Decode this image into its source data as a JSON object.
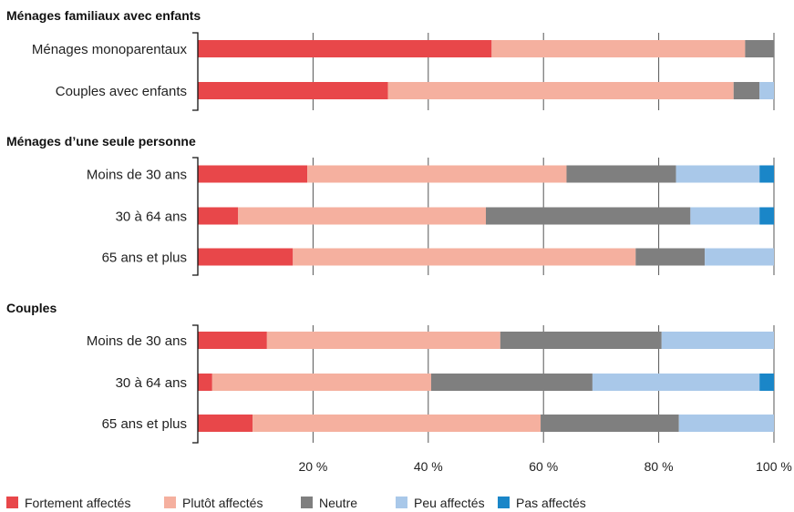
{
  "chart_data": {
    "type": "bar",
    "stacked": true,
    "orientation": "horizontal",
    "xlim": [
      0,
      100
    ],
    "xticks": [
      20,
      40,
      60,
      80,
      100
    ],
    "xtick_labels": [
      "20 %",
      "40 %",
      "60 %",
      "80 %",
      "100 %"
    ],
    "grid": "vertical",
    "legend_position": "bottom",
    "series": [
      {
        "name": "Fortement affectés",
        "color": "#e8474a"
      },
      {
        "name": "Plutôt affectés",
        "color": "#f5b09f"
      },
      {
        "name": "Neutre",
        "color": "#7f7f7f"
      },
      {
        "name": "Peu affectés",
        "color": "#a9c8e9"
      },
      {
        "name": "Pas affectés",
        "color": "#1a86c8"
      }
    ],
    "groups": [
      {
        "title": "Ménages familiaux avec enfants",
        "categories": [
          {
            "label": "Ménages monoparentaux",
            "values": [
              51,
              44,
              5,
              0,
              0
            ]
          },
          {
            "label": "Couples avec enfants",
            "values": [
              33,
              60,
              4.5,
              2.5,
              0
            ]
          }
        ]
      },
      {
        "title": "Ménages d’une seule personne",
        "categories": [
          {
            "label": "Moins de 30 ans",
            "values": [
              19,
              45,
              19,
              14.5,
              2.5
            ]
          },
          {
            "label": "30 à 64 ans",
            "values": [
              7,
              43,
              35.5,
              12,
              2.5
            ]
          },
          {
            "label": "65 ans et plus",
            "values": [
              16.5,
              59.5,
              12,
              12,
              0
            ]
          }
        ]
      },
      {
        "title": "Couples",
        "categories": [
          {
            "label": "Moins de 30 ans",
            "values": [
              12,
              40.5,
              28,
              19.5,
              0
            ]
          },
          {
            "label": "30 à 64 ans",
            "values": [
              2.5,
              38,
              28,
              29,
              2.5
            ]
          },
          {
            "label": "65 ans et plus",
            "values": [
              9.5,
              50,
              24,
              16.5,
              0
            ]
          }
        ]
      }
    ]
  }
}
